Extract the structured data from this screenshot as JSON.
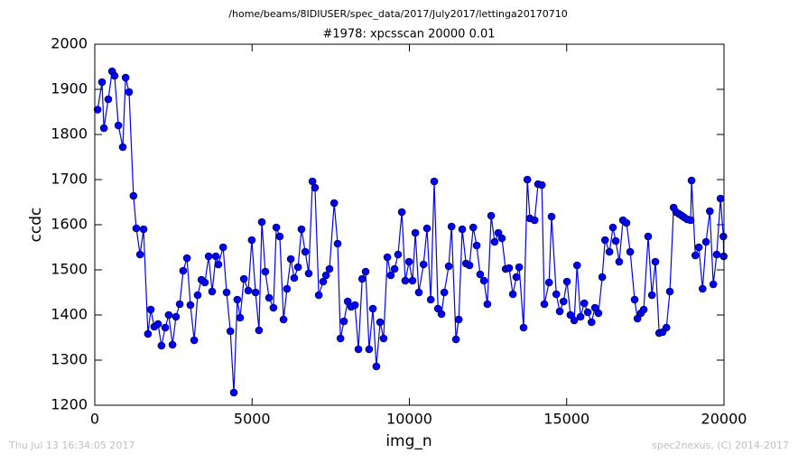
{
  "chart_data": {
    "type": "line",
    "title": "/home/beams/8IDIUSER/spec_data/2017/July2017/lettinga20170710",
    "subtitle": "#1978: xpcsscan 20000 0.01",
    "xlabel": "img_n",
    "ylabel": "ccdc",
    "color": "#0000ff",
    "xlim": [
      0,
      20000
    ],
    "xticks": [
      0,
      5000,
      10000,
      15000,
      20000
    ],
    "ylim": [
      1200,
      2000
    ],
    "yticks": [
      1200,
      1300,
      1400,
      1500,
      1600,
      1700,
      1800,
      1900,
      2000
    ],
    "x": [
      90,
      230,
      290,
      430,
      550,
      630,
      750,
      890,
      980,
      1090,
      1230,
      1320,
      1440,
      1550,
      1690,
      1780,
      1890,
      2010,
      2120,
      2240,
      2350,
      2470,
      2580,
      2700,
      2810,
      2930,
      3040,
      3160,
      3270,
      3390,
      3500,
      3620,
      3730,
      3850,
      3930,
      4080,
      4190,
      4310,
      4420,
      4530,
      4620,
      4740,
      4880,
      4990,
      5110,
      5220,
      5310,
      5420,
      5540,
      5680,
      5770,
      5880,
      6000,
      6110,
      6230,
      6340,
      6460,
      6570,
      6690,
      6800,
      6920,
      7000,
      7120,
      7260,
      7350,
      7460,
      7610,
      7720,
      7810,
      7920,
      8040,
      8150,
      8270,
      8380,
      8500,
      8610,
      8720,
      8840,
      8950,
      9070,
      9180,
      9300,
      9410,
      9530,
      9640,
      9760,
      9870,
      9990,
      10100,
      10190,
      10300,
      10450,
      10560,
      10680,
      10790,
      10910,
      11020,
      11110,
      11250,
      11340,
      11480,
      11570,
      11680,
      11800,
      11910,
      12030,
      12140,
      12250,
      12370,
      12480,
      12600,
      12710,
      12830,
      12940,
      13060,
      13170,
      13290,
      13400,
      13490,
      13630,
      13750,
      13830,
      13980,
      14090,
      14210,
      14290,
      14440,
      14520,
      14670,
      14780,
      14900,
      15010,
      15120,
      15240,
      15330,
      15440,
      15560,
      15670,
      15790,
      15900,
      16010,
      16130,
      16220,
      16360,
      16470,
      16560,
      16670,
      16790,
      16900,
      17020,
      17160,
      17250,
      17360,
      17450,
      17590,
      17710,
      17820,
      17940,
      18050,
      18170,
      18280,
      18400,
      18480,
      18570,
      18660,
      18740,
      18830,
      18940,
      18970,
      19090,
      19200,
      19320,
      19430,
      19550,
      19660,
      19770,
      19890,
      19980,
      19990
    ],
    "values": [
      1855,
      1916,
      1814,
      1878,
      1940,
      1930,
      1820,
      1772,
      1926,
      1894,
      1664,
      1592,
      1534,
      1590,
      1358,
      1412,
      1374,
      1380,
      1332,
      1372,
      1400,
      1334,
      1396,
      1424,
      1498,
      1526,
      1422,
      1344,
      1444,
      1478,
      1472,
      1530,
      1452,
      1530,
      1512,
      1550,
      1450,
      1364,
      1228,
      1434,
      1394,
      1480,
      1454,
      1566,
      1450,
      1366,
      1606,
      1496,
      1438,
      1416,
      1594,
      1574,
      1390,
      1458,
      1524,
      1482,
      1506,
      1590,
      1540,
      1492,
      1696,
      1682,
      1444,
      1474,
      1488,
      1502,
      1648,
      1558,
      1348,
      1386,
      1430,
      1418,
      1422,
      1324,
      1480,
      1496,
      1324,
      1414,
      1286,
      1384,
      1348,
      1528,
      1488,
      1502,
      1534,
      1628,
      1476,
      1518,
      1476,
      1582,
      1450,
      1512,
      1592,
      1434,
      1696,
      1414,
      1402,
      1450,
      1508,
      1596,
      1346,
      1390,
      1590,
      1514,
      1510,
      1594,
      1554,
      1490,
      1476,
      1424,
      1620,
      1562,
      1582,
      1570,
      1502,
      1504,
      1446,
      1484,
      1506,
      1372,
      1700,
      1614,
      1610,
      1690,
      1688,
      1424,
      1472,
      1618,
      1446,
      1408,
      1430,
      1474,
      1400,
      1388,
      1510,
      1396,
      1426,
      1406,
      1384,
      1416,
      1404,
      1484,
      1566,
      1540,
      1594,
      1564,
      1518,
      1610,
      1604,
      1540,
      1434,
      1392,
      1404,
      1412,
      1574,
      1444,
      1518,
      1360,
      1362,
      1372,
      1452,
      1638,
      1628,
      1624,
      1620,
      1616,
      1612,
      1610,
      1698,
      1532,
      1550,
      1458,
      1562,
      1630,
      1468,
      1534,
      1658,
      1574,
      1530
    ]
  },
  "footer": {
    "left": "Thu Jul 13 16:34:05 2017",
    "right": "spec2nexus, (C) 2014-2017"
  }
}
